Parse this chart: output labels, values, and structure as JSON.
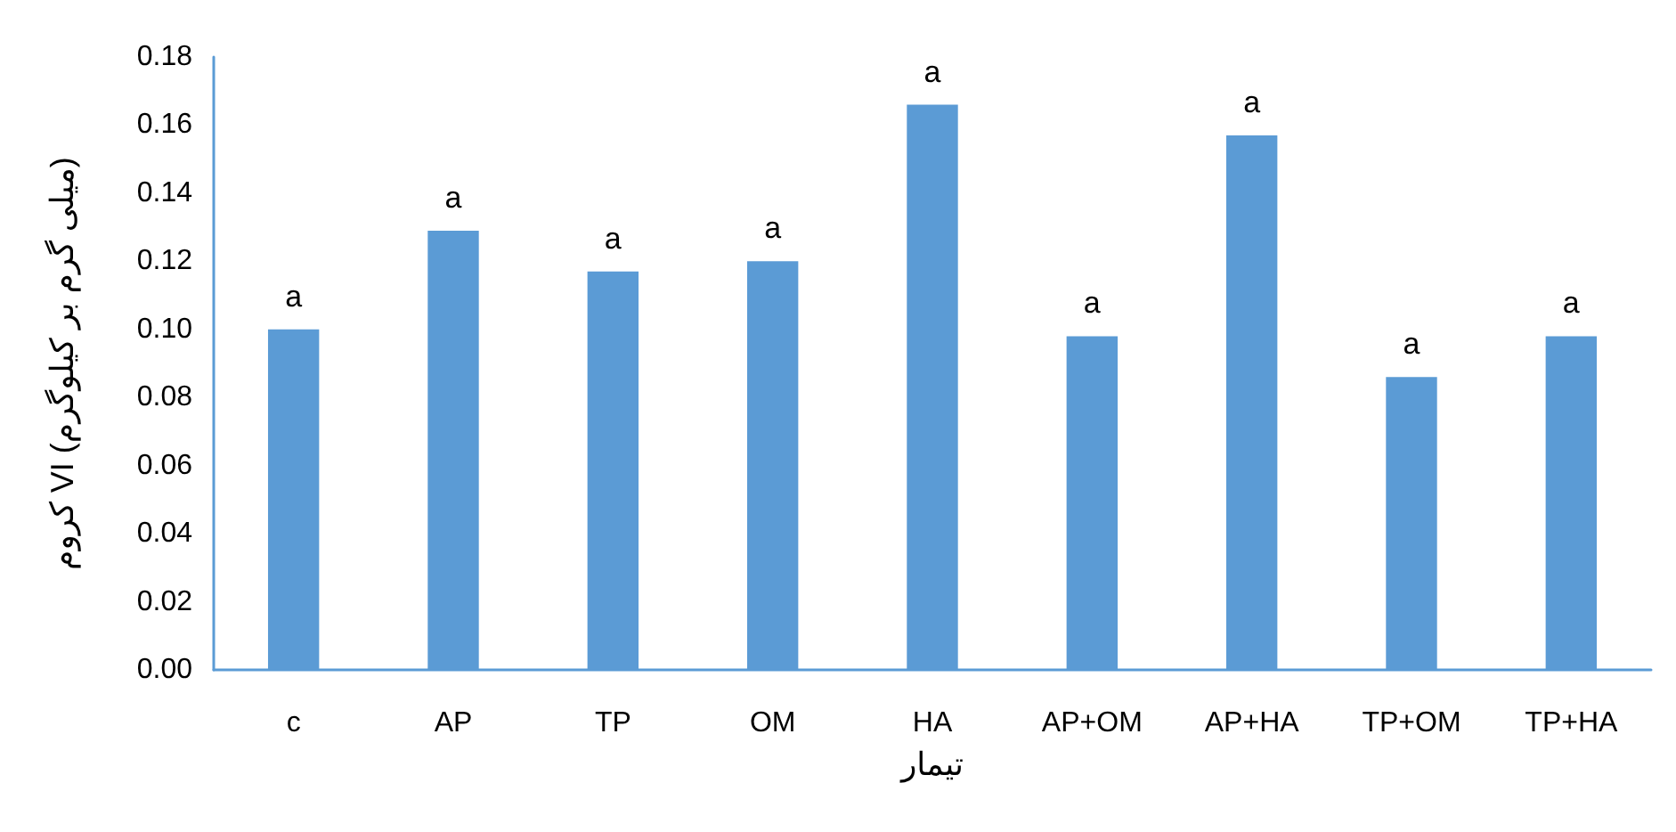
{
  "chart_data": {
    "type": "bar",
    "xlabel": "تیمار",
    "ylabel": "کروم VI (میلی گرم بر کیلوگرم)",
    "categories": [
      "c",
      "AP",
      "TP",
      "OM",
      "HA",
      "AP+OM",
      "AP+HA",
      "TP+OM",
      "TP+HA"
    ],
    "values": [
      0.1,
      0.129,
      0.117,
      0.12,
      0.166,
      0.098,
      0.157,
      0.086,
      0.098
    ],
    "color": "#5b9bd5",
    "ylim": [
      0,
      0.18
    ],
    "yticks": [
      {
        "value": 0,
        "label": "0.00"
      },
      {
        "value": 0.02,
        "label": "0.02"
      },
      {
        "value": 0.04,
        "label": "0.04"
      },
      {
        "value": 0.06,
        "label": "0.06"
      },
      {
        "value": 0.08,
        "label": "0.08"
      },
      {
        "value": 0.1,
        "label": "0.10"
      },
      {
        "value": 0.12,
        "label": "0.12"
      },
      {
        "value": 0.14,
        "label": "0.14"
      },
      {
        "value": 0.16,
        "label": "0.16"
      },
      {
        "value": 0.18,
        "label": "0.18"
      }
    ],
    "grid": false,
    "annotations": [
      {
        "text": "a",
        "x": "c",
        "y": 0.1
      },
      {
        "text": "a",
        "x": "AP",
        "y": 0.129
      },
      {
        "text": "a",
        "x": "TP",
        "y": 0.117
      },
      {
        "text": "a",
        "x": "OM",
        "y": 0.12
      },
      {
        "text": "a",
        "x": "HA",
        "y": 0.166
      },
      {
        "text": "a",
        "x": "AP+OM",
        "y": 0.098
      },
      {
        "text": "a",
        "x": "AP+HA",
        "y": 0.157
      },
      {
        "text": "a",
        "x": "TP+OM",
        "y": 0.086
      },
      {
        "text": "a",
        "x": "TP+HA",
        "y": 0.098
      }
    ]
  }
}
